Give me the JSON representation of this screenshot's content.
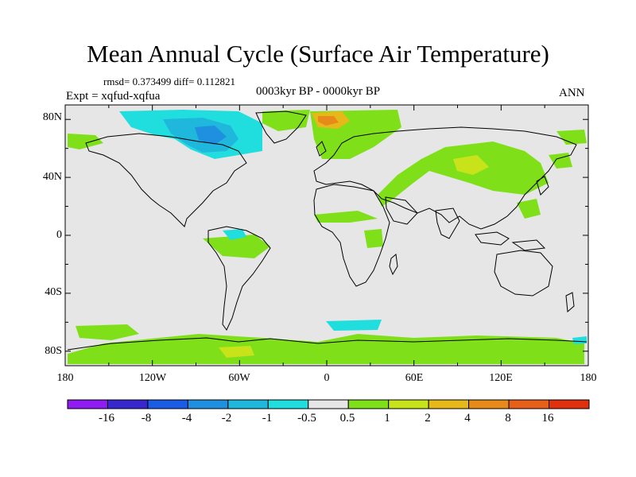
{
  "title": "Mean Annual Cycle (Surface Air Temperature)",
  "stats": "rmsd= 0.373499 diff= 0.112821",
  "expt": "Expt = xqfud-xqfua",
  "period": "0003kyr BP - 0000kyr BP",
  "season": "ANN",
  "lat_labels": [
    "80N",
    "40N",
    "0",
    "40S",
    "80S"
  ],
  "lon_labels": [
    "180",
    "120W",
    "60W",
    "0",
    "60E",
    "120E",
    "180"
  ],
  "colorbar": {
    "labels": [
      "-16",
      "-8",
      "-4",
      "-2",
      "-1",
      "-0.5",
      "0.5",
      "1",
      "2",
      "4",
      "8",
      "16"
    ],
    "colors": [
      "#8f1cf0",
      "#3627cf",
      "#1a5ce6",
      "#1f8fe0",
      "#1fb7dc",
      "#20dede",
      "#e6e6e6",
      "#7fe01a",
      "#c9e31a",
      "#e6b81a",
      "#e68a1a",
      "#e6601a",
      "#e0300e"
    ]
  },
  "map_colors": {
    "background": "#e6e6e6",
    "warm_small": "#7fe01a",
    "warm_mid": "#c9e31a",
    "warm_high": "#e6b81a",
    "warm_peak": "#e68a1a",
    "cool_small": "#20dede",
    "cool_mid": "#1fb7dc",
    "cool_high": "#1f8fe0",
    "coastline": "#000000"
  }
}
